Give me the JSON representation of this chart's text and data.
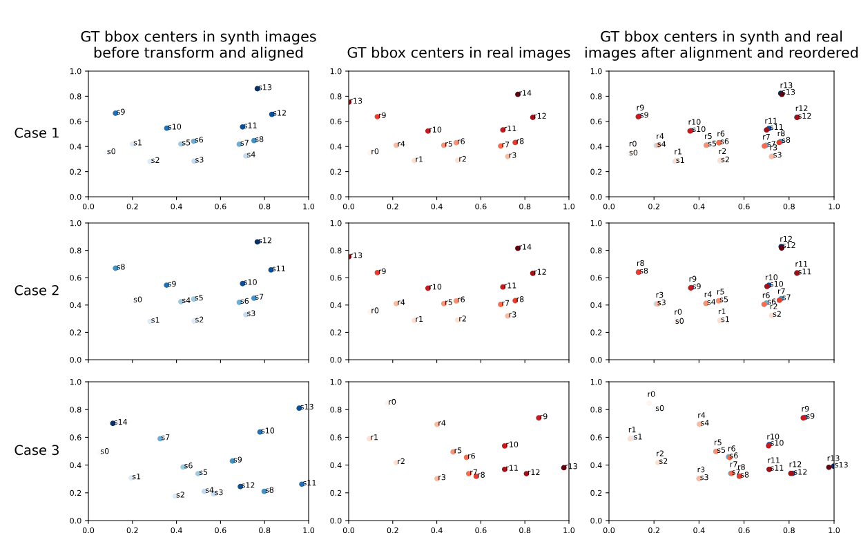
{
  "chart_data": [
    {
      "type": "scatter",
      "title": "GT bbox centers in synth images\nbefore transform and aligned",
      "ylabel": "Case 1",
      "marker": "circle",
      "xlim": [
        0,
        1
      ],
      "ylim": [
        0,
        1
      ],
      "xticks": [
        {
          "value": 0,
          "label": "0.0"
        },
        {
          "value": 0.2,
          "label": "0.2"
        },
        {
          "value": 0.4,
          "label": "0.4"
        },
        {
          "value": 0.6,
          "label": "0.6"
        },
        {
          "value": 0.8,
          "label": "0.8"
        },
        {
          "value": 1,
          "label": "1.0"
        }
      ],
      "yticks": [
        {
          "value": 0,
          "label": "0.0"
        },
        {
          "value": 0.2,
          "label": "0.2"
        },
        {
          "value": 0.4,
          "label": "0.4"
        },
        {
          "value": 0.6,
          "label": "0.6"
        },
        {
          "value": 0.8,
          "label": "0.8"
        },
        {
          "value": 1,
          "label": "1.0"
        }
      ],
      "series": [
        {
          "x": [
            0.08,
            0.2,
            0.28,
            0.48,
            0.715,
            0.42,
            0.478,
            0.685,
            0.752,
            0.123,
            0.356,
            0.7,
            0.833,
            0.767
          ],
          "values": [
            0.35,
            0.42,
            0.28,
            0.283,
            0.325,
            0.42,
            0.442,
            0.418,
            0.447,
            0.665,
            0.546,
            0.556,
            0.656,
            0.86
          ],
          "colors": [
            "#f7fbff",
            "#deebf7",
            "#deebf7",
            "#c6dbef",
            "#c6dbef",
            "#9ecae1",
            "#6baed6",
            "#6baed6",
            "#4292c6",
            "#2171b5",
            "#2171b5",
            "#08519c",
            "#08519c",
            "#08306b"
          ],
          "value_labels": [
            "s0",
            "s1",
            "s2",
            "s3",
            "s4",
            "s5",
            "s6",
            "s7",
            "s8",
            "s9",
            "s10",
            "s11",
            "s12",
            "s13"
          ]
        }
      ]
    },
    {
      "type": "scatter",
      "title": "GT bbox centers in real images",
      "marker": "circle",
      "xlim": [
        0,
        1
      ],
      "ylim": [
        0,
        1
      ],
      "xticks": [
        {
          "value": 0,
          "label": "0.0"
        },
        {
          "value": 0.2,
          "label": "0.2"
        },
        {
          "value": 0.4,
          "label": "0.4"
        },
        {
          "value": 0.6,
          "label": "0.6"
        },
        {
          "value": 0.8,
          "label": "0.8"
        },
        {
          "value": 1,
          "label": "1.0"
        }
      ],
      "yticks": [
        {
          "value": 0,
          "label": "0.0"
        },
        {
          "value": 0.2,
          "label": "0.2"
        },
        {
          "value": 0.4,
          "label": "0.4"
        },
        {
          "value": 0.6,
          "label": "0.6"
        },
        {
          "value": 0.8,
          "label": "0.8"
        },
        {
          "value": 1,
          "label": "1.0"
        }
      ],
      "series": [
        {
          "x": [
            0.097,
            0.298,
            0.495,
            0.722,
            0.216,
            0.432,
            0.488,
            0.69,
            0.756,
            0.13,
            0.36,
            0.7,
            0.836,
            0.0,
            0.768
          ],
          "values": [
            0.35,
            0.287,
            0.29,
            0.32,
            0.41,
            0.41,
            0.43,
            0.404,
            0.432,
            0.637,
            0.523,
            0.532,
            0.632,
            0.753,
            0.815
          ],
          "colors": [
            "#fff5f0",
            "#fee0d2",
            "#fee0d2",
            "#fcbba1",
            "#fcbba1",
            "#fc9272",
            "#fc9272",
            "#fb6a4a",
            "#ef3b2c",
            "#ef3b2c",
            "#cb181d",
            "#cb181d",
            "#a50f15",
            "#a50f15",
            "#67000d"
          ],
          "value_labels": [
            "r0",
            "r1",
            "r2",
            "r3",
            "r4",
            "r5",
            "r6",
            "r7",
            "r8",
            "r9",
            "r10",
            "r11",
            "r12",
            "r13",
            "r14"
          ]
        }
      ]
    },
    {
      "type": "scatter",
      "title": "GT bbox centers in synth and real\nimages after alignment and reordered",
      "marker": "circle",
      "xlim": [
        0,
        1
      ],
      "ylim": [
        0,
        1
      ],
      "xticks": [
        {
          "value": 0,
          "label": "0.0"
        },
        {
          "value": 0.2,
          "label": "0.2"
        },
        {
          "value": 0.4,
          "label": "0.4"
        },
        {
          "value": 0.6,
          "label": "0.6"
        },
        {
          "value": 0.8,
          "label": "0.8"
        },
        {
          "value": 1,
          "label": "1.0"
        }
      ],
      "yticks": [
        {
          "value": 0,
          "label": "0.0"
        },
        {
          "value": 0.2,
          "label": "0.2"
        },
        {
          "value": 0.4,
          "label": "0.4"
        },
        {
          "value": 0.6,
          "label": "0.6"
        },
        {
          "value": 0.8,
          "label": "0.8"
        },
        {
          "value": 1,
          "label": "1.0"
        }
      ],
      "series": [
        {
          "x": [
            0.085,
            0.293,
            0.493,
            0.725,
            0.21,
            0.435,
            0.49,
            0.698,
            0.763,
            0.133,
            0.365,
            0.71,
            0.835,
            0.763
          ],
          "values": [
            0.34,
            0.28,
            0.285,
            0.323,
            0.408,
            0.412,
            0.43,
            0.41,
            0.44,
            0.64,
            0.527,
            0.543,
            0.632,
            0.823
          ],
          "colors": [
            "#f7fbff",
            "#deebf7",
            "#deebf7",
            "#c6dbef",
            "#c6dbef",
            "#9ecae1",
            "#6baed6",
            "#6baed6",
            "#4292c6",
            "#2171b5",
            "#2171b5",
            "#08519c",
            "#08519c",
            "#08306b"
          ],
          "value_labels": [
            "s0",
            "s1",
            "s2",
            "s3",
            "s4",
            "s5",
            "s6",
            "s7",
            "s8",
            "s9",
            "s10",
            "s11",
            "s12",
            "s13"
          ]
        },
        {
          "x": [
            0.097,
            0.298,
            0.495,
            0.722,
            0.218,
            0.432,
            0.488,
            0.69,
            0.756,
            0.13,
            0.36,
            0.7,
            0.836,
            0.768
          ],
          "values": [
            0.35,
            0.287,
            0.29,
            0.32,
            0.41,
            0.41,
            0.43,
            0.404,
            0.432,
            0.637,
            0.523,
            0.532,
            0.632,
            0.815
          ],
          "colors": [
            "#fff5f0",
            "#fee0d2",
            "#fee0d2",
            "#fcbba1",
            "#fcbba1",
            "#fc9272",
            "#fb6a4a",
            "#fb6a4a",
            "#ef3b2c",
            "#cb181d",
            "#cb181d",
            "#a50f15",
            "#a50f15",
            "#67000d"
          ],
          "value_labels": [
            "r0",
            "r1",
            "r2",
            "r3",
            "r4",
            "r5",
            "r6",
            "r7",
            "r8",
            "r9",
            "r10",
            "r11",
            "r12",
            "r13"
          ]
        }
      ]
    },
    {
      "type": "scatter",
      "ylabel": "Case 2",
      "marker": "circle",
      "tick_labels": "y",
      "xlim": [
        0,
        1
      ],
      "ylim": [
        0,
        1
      ],
      "xticks": [
        {
          "value": 0,
          "label": null
        },
        {
          "value": 0.2,
          "label": null
        },
        {
          "value": 0.4,
          "label": null
        },
        {
          "value": 0.6,
          "label": null
        },
        {
          "value": 0.8,
          "label": null
        },
        {
          "value": 1,
          "label": null
        }
      ],
      "yticks": [
        {
          "value": 0,
          "label": "0.0"
        },
        {
          "value": 0.2,
          "label": "0.2"
        },
        {
          "value": 0.4,
          "label": "0.4"
        },
        {
          "value": 0.6,
          "label": "0.6"
        },
        {
          "value": 0.8,
          "label": "0.8"
        },
        {
          "value": 1,
          "label": "1.0"
        }
      ],
      "series": [
        {
          "x": [
            0.2,
            0.28,
            0.48,
            0.715,
            0.42,
            0.478,
            0.685,
            0.752,
            0.123,
            0.355,
            0.7,
            0.829,
            0.767
          ],
          "values": [
            0.43,
            0.28,
            0.283,
            0.329,
            0.424,
            0.443,
            0.419,
            0.45,
            0.669,
            0.545,
            0.557,
            0.657,
            0.862
          ],
          "colors": [
            "#f7fbff",
            "#deebf7",
            "#deebf7",
            "#c6dbef",
            "#9ecae1",
            "#9ecae1",
            "#6baed6",
            "#4292c6",
            "#4292c6",
            "#2171b5",
            "#08519c",
            "#08519c",
            "#08306b"
          ],
          "value_labels": [
            "s0",
            "s1",
            "s2",
            "s3",
            "s4",
            "s5",
            "s6",
            "s7",
            "s8",
            "s9",
            "s10",
            "s11",
            "s12"
          ]
        }
      ]
    },
    {
      "type": "scatter",
      "marker": "circle",
      "tick_labels": "y",
      "xlim": [
        0,
        1
      ],
      "ylim": [
        0,
        1
      ],
      "xticks": [
        {
          "value": 0,
          "label": null
        },
        {
          "value": 0.2,
          "label": null
        },
        {
          "value": 0.4,
          "label": null
        },
        {
          "value": 0.6,
          "label": null
        },
        {
          "value": 0.8,
          "label": null
        },
        {
          "value": 1,
          "label": null
        }
      ],
      "yticks": [
        {
          "value": 0,
          "label": "0.0"
        },
        {
          "value": 0.2,
          "label": "0.2"
        },
        {
          "value": 0.4,
          "label": "0.4"
        },
        {
          "value": 0.6,
          "label": "0.6"
        },
        {
          "value": 0.8,
          "label": "0.8"
        },
        {
          "value": 1,
          "label": "1.0"
        }
      ],
      "series": [
        {
          "x": [
            0.097,
            0.298,
            0.495,
            0.722,
            0.216,
            0.432,
            0.488,
            0.69,
            0.756,
            0.13,
            0.36,
            0.7,
            0.836,
            0.0,
            0.768
          ],
          "values": [
            0.35,
            0.287,
            0.29,
            0.32,
            0.41,
            0.41,
            0.43,
            0.404,
            0.432,
            0.637,
            0.523,
            0.532,
            0.632,
            0.753,
            0.815
          ],
          "colors": [
            "#fff5f0",
            "#fee0d2",
            "#fee0d2",
            "#fcbba1",
            "#fcbba1",
            "#fc9272",
            "#fc9272",
            "#fb6a4a",
            "#ef3b2c",
            "#ef3b2c",
            "#cb181d",
            "#cb181d",
            "#a50f15",
            "#a50f15",
            "#67000d"
          ],
          "value_labels": [
            "r0",
            "r1",
            "r2",
            "r3",
            "r4",
            "r5",
            "r6",
            "r7",
            "r8",
            "r9",
            "r10",
            "r11",
            "r12",
            "r13",
            "r14"
          ]
        }
      ]
    },
    {
      "type": "scatter",
      "marker": "circle",
      "tick_labels": "y",
      "xlim": [
        0,
        1
      ],
      "ylim": [
        0,
        1
      ],
      "xticks": [
        {
          "value": 0,
          "label": null
        },
        {
          "value": 0.2,
          "label": null
        },
        {
          "value": 0.4,
          "label": null
        },
        {
          "value": 0.6,
          "label": null
        },
        {
          "value": 0.8,
          "label": null
        },
        {
          "value": 1,
          "label": null
        }
      ],
      "yticks": [
        {
          "value": 0,
          "label": "0.0"
        },
        {
          "value": 0.2,
          "label": "0.2"
        },
        {
          "value": 0.4,
          "label": "0.4"
        },
        {
          "value": 0.6,
          "label": "0.6"
        },
        {
          "value": 0.8,
          "label": "0.8"
        },
        {
          "value": 1,
          "label": "1.0"
        }
      ],
      "series": [
        {
          "x": [
            0.29,
            0.493,
            0.723,
            0.21,
            0.431,
            0.487,
            0.699,
            0.765,
            0.131,
            0.366,
            0.71,
            0.835,
            0.765
          ],
          "values": [
            0.273,
            0.286,
            0.324,
            0.408,
            0.412,
            0.431,
            0.415,
            0.446,
            0.64,
            0.527,
            0.544,
            0.634,
            0.827
          ],
          "colors": [
            "#f7fbff",
            "#deebf7",
            "#deebf7",
            "#c6dbef",
            "#9ecae1",
            "#9ecae1",
            "#6baed6",
            "#4292c6",
            "#4292c6",
            "#2171b5",
            "#08519c",
            "#08519c",
            "#08306b"
          ],
          "value_labels": [
            "s0",
            "s1",
            "s2",
            "s3",
            "s4",
            "s5",
            "s6",
            "s7",
            "s8",
            "s9",
            "s10",
            "s11",
            "s12"
          ]
        },
        {
          "x": [
            0.298,
            0.493,
            0.723,
            0.216,
            0.431,
            0.487,
            0.689,
            0.757,
            0.131,
            0.363,
            0.702,
            0.835,
            0.767
          ],
          "values": [
            0.283,
            0.286,
            0.324,
            0.408,
            0.412,
            0.431,
            0.405,
            0.435,
            0.64,
            0.525,
            0.536,
            0.634,
            0.817
          ],
          "colors": [
            "#fff5f0",
            "#fee0d2",
            "#fee0d2",
            "#fcbba1",
            "#fc9272",
            "#fc9272",
            "#fb6a4a",
            "#ef3b2c",
            "#ef3b2c",
            "#cb181d",
            "#a50f15",
            "#a50f15",
            "#67000d"
          ],
          "value_labels": [
            "r0",
            "r1",
            "r2",
            "r3",
            "r4",
            "r5",
            "r6",
            "r7",
            "r8",
            "r9",
            "r10",
            "r11",
            "r12"
          ]
        }
      ]
    },
    {
      "type": "scatter",
      "ylabel": "Case 3",
      "marker": "circle",
      "xlim": [
        0,
        1
      ],
      "ylim": [
        0,
        1
      ],
      "xticks": [
        {
          "value": 0,
          "label": "0.0"
        },
        {
          "value": 0.2,
          "label": "0.2"
        },
        {
          "value": 0.4,
          "label": "0.4"
        },
        {
          "value": 0.6,
          "label": "0.6"
        },
        {
          "value": 0.8,
          "label": "0.8"
        },
        {
          "value": 1,
          "label": "1.0"
        }
      ],
      "yticks": [
        {
          "value": 0,
          "label": "0.0"
        },
        {
          "value": 0.2,
          "label": "0.2"
        },
        {
          "value": 0.4,
          "label": "0.4"
        },
        {
          "value": 0.6,
          "label": "0.6"
        },
        {
          "value": 0.8,
          "label": "0.8"
        },
        {
          "value": 1,
          "label": "1.0"
        }
      ],
      "series": [
        {
          "x": [
            0.05,
            0.194,
            0.394,
            0.568,
            0.526,
            0.498,
            0.43,
            0.326,
            0.798,
            0.654,
            0.779,
            0.969,
            0.69,
            0.957,
            0.111
          ],
          "values": [
            0.49,
            0.307,
            0.176,
            0.193,
            0.21,
            0.338,
            0.386,
            0.59,
            0.21,
            0.429,
            0.638,
            0.262,
            0.245,
            0.81,
            0.7
          ],
          "colors": [
            "#f7fbff",
            "#deebf7",
            "#deebf7",
            "#c6dbef",
            "#c6dbef",
            "#9ecae1",
            "#9ecae1",
            "#6baed6",
            "#4292c6",
            "#4292c6",
            "#2171b5",
            "#2171b5",
            "#08519c",
            "#08519c",
            "#08306b"
          ],
          "value_labels": [
            "s0",
            "s1",
            "s2",
            "s3",
            "s4",
            "s5",
            "s6",
            "s7",
            "s8",
            "s9",
            "s10",
            "s11",
            "s12",
            "s13",
            "s14"
          ]
        }
      ]
    },
    {
      "type": "scatter",
      "marker": "circle",
      "xlim": [
        0,
        1
      ],
      "ylim": [
        0,
        1
      ],
      "xticks": [
        {
          "value": 0,
          "label": "0.0"
        },
        {
          "value": 0.2,
          "label": "0.2"
        },
        {
          "value": 0.4,
          "label": "0.4"
        },
        {
          "value": 0.6,
          "label": "0.6"
        },
        {
          "value": 0.8,
          "label": "0.8"
        },
        {
          "value": 1,
          "label": "1.0"
        }
      ],
      "yticks": [
        {
          "value": 0,
          "label": "0.0"
        },
        {
          "value": 0.2,
          "label": "0.2"
        },
        {
          "value": 0.4,
          "label": "0.4"
        },
        {
          "value": 0.6,
          "label": "0.6"
        },
        {
          "value": 0.8,
          "label": "0.8"
        },
        {
          "value": 1,
          "label": "1.0"
        }
      ],
      "series": [
        {
          "x": [
            0.175,
            0.094,
            0.216,
            0.401,
            0.401,
            0.474,
            0.535,
            0.545,
            0.579,
            0.863,
            0.708,
            0.708,
            0.807,
            0.977
          ],
          "values": [
            0.845,
            0.59,
            0.417,
            0.302,
            0.693,
            0.495,
            0.455,
            0.338,
            0.319,
            0.74,
            0.538,
            0.369,
            0.338,
            0.381
          ],
          "colors": [
            "#fff5f0",
            "#fee0d2",
            "#fee0d2",
            "#fcbba1",
            "#fcbba1",
            "#fc9272",
            "#fb6a4a",
            "#fb6a4a",
            "#ef3b2c",
            "#cb181d",
            "#cb181d",
            "#a50f15",
            "#a50f15",
            "#67000d"
          ],
          "value_labels": [
            "r0",
            "r1",
            "r2",
            "r3",
            "r4",
            "r5",
            "r6",
            "r7",
            "r8",
            "r9",
            "r10",
            "r11",
            "r12",
            "r13"
          ]
        }
      ]
    },
    {
      "type": "scatter",
      "marker": "circle",
      "xlim": [
        0,
        1
      ],
      "ylim": [
        0,
        1
      ],
      "xticks": [
        {
          "value": 0,
          "label": "0.0"
        },
        {
          "value": 0.2,
          "label": "0.2"
        },
        {
          "value": 0.4,
          "label": "0.4"
        },
        {
          "value": 0.6,
          "label": "0.6"
        },
        {
          "value": 0.8,
          "label": "0.8"
        },
        {
          "value": 1,
          "label": "1.0"
        }
      ],
      "yticks": [
        {
          "value": 0,
          "label": "0.0"
        },
        {
          "value": 0.2,
          "label": "0.2"
        },
        {
          "value": 0.4,
          "label": "0.4"
        },
        {
          "value": 0.6,
          "label": "0.6"
        },
        {
          "value": 0.8,
          "label": "0.8"
        },
        {
          "value": 1,
          "label": "1.0"
        }
      ],
      "series": [
        {
          "x": [
            0.202,
            0.105,
            0.218,
            0.4,
            0.402,
            0.475,
            0.531,
            0.541,
            0.579,
            0.871,
            0.712,
            0.712,
            0.816,
            0.998
          ],
          "values": [
            0.8,
            0.594,
            0.418,
            0.302,
            0.694,
            0.498,
            0.459,
            0.34,
            0.32,
            0.743,
            0.549,
            0.369,
            0.34,
            0.392
          ],
          "colors": [
            "#f7fbff",
            "#deebf7",
            "#deebf7",
            "#c6dbef",
            "#c6dbef",
            "#9ecae1",
            "#6baed6",
            "#6baed6",
            "#4292c6",
            "#2171b5",
            "#2171b5",
            "#08519c",
            "#08519c",
            "#08306b"
          ],
          "value_labels": [
            "s0",
            "s1",
            "s2",
            "s3",
            "s4",
            "s5",
            "s6",
            "s7",
            "s8",
            "s9",
            "s10",
            "s11",
            "s12",
            "s13"
          ]
        },
        {
          "x": [
            0.179,
            0.094,
            0.218,
            0.4,
            0.402,
            0.475,
            0.536,
            0.545,
            0.579,
            0.863,
            0.709,
            0.712,
            0.808,
            0.977
          ],
          "values": [
            0.846,
            0.59,
            0.418,
            0.302,
            0.694,
            0.498,
            0.454,
            0.34,
            0.32,
            0.74,
            0.539,
            0.369,
            0.34,
            0.384
          ],
          "colors": [
            "#fff5f0",
            "#fee0d2",
            "#fee0d2",
            "#fcbba1",
            "#fcbba1",
            "#fc9272",
            "#fb6a4a",
            "#fb6a4a",
            "#ef3b2c",
            "#cb181d",
            "#cb181d",
            "#a50f15",
            "#a50f15",
            "#67000d"
          ],
          "value_labels": [
            "r0",
            "r1",
            "r2",
            "r3",
            "r4",
            "r5",
            "r6",
            "r7",
            "r8",
            "r9",
            "r10",
            "r11",
            "r12",
            "r13"
          ]
        }
      ]
    }
  ]
}
